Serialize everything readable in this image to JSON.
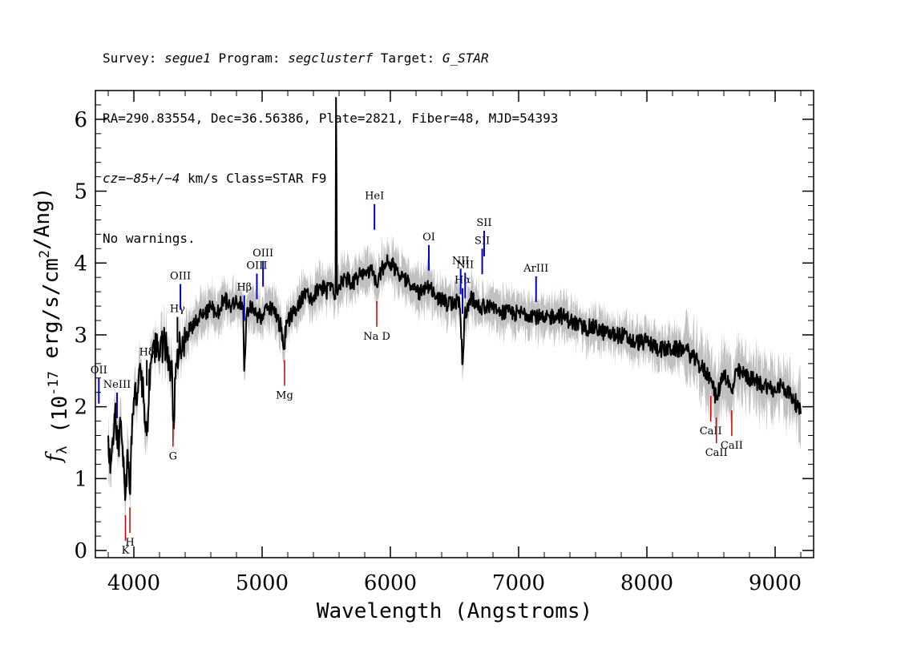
{
  "header": {
    "line1": {
      "survey_label": "Survey: ",
      "survey": "segue1",
      "program_label": " Program: ",
      "program": "segclusterf",
      "target_label": " Target: ",
      "target": "G_STAR"
    },
    "line2": "RA=290.83554, Dec=36.56386, Plate=2821, Fiber=48, MJD=54393",
    "line3": {
      "cz": "cz=−85+/−4",
      "rest": " km/s Class=STAR F9"
    },
    "line4": "No warnings."
  },
  "chart_data": {
    "type": "line",
    "xlabel": "Wavelength (Angstroms)",
    "ylabel": "f_λ (10^-17 erg/s/cm^2/Ang)",
    "xlim": [
      3700,
      9300
    ],
    "ylim": [
      -0.1,
      6.4
    ],
    "x_ticks": [
      4000,
      5000,
      6000,
      7000,
      8000,
      9000
    ],
    "y_ticks": [
      0,
      1,
      2,
      3,
      4,
      5,
      6
    ],
    "series": [
      {
        "color": "#000000",
        "x": [
          3800,
          3820,
          3850,
          3880,
          3900,
          3920,
          3933,
          3950,
          3968,
          3990,
          4030,
          4060,
          4101,
          4130,
          4160,
          4200,
          4240,
          4280,
          4300,
          4310,
          4330,
          4360,
          4400,
          4450,
          4500,
          4550,
          4600,
          4650,
          4700,
          4750,
          4800,
          4850,
          4861,
          4880,
          4920,
          4960,
          5000,
          5050,
          5100,
          5150,
          5170,
          5190,
          5250,
          5300,
          5350,
          5400,
          5450,
          5500,
          5550,
          5570,
          5577,
          5585,
          5600,
          5650,
          5700,
          5750,
          5800,
          5850,
          5890,
          5930,
          5960,
          6000,
          6050,
          6100,
          6150,
          6200,
          6250,
          6300,
          6350,
          6400,
          6450,
          6500,
          6540,
          6563,
          6580,
          6620,
          6700,
          6800,
          6900,
          7000,
          7100,
          7200,
          7300,
          7400,
          7500,
          7600,
          7700,
          7800,
          7900,
          8000,
          8100,
          8200,
          8300,
          8400,
          8498,
          8542,
          8600,
          8662,
          8700,
          8800,
          8900,
          8950,
          9000,
          9050,
          9100,
          9150,
          9200
        ],
        "y": [
          1.6,
          1.2,
          1.9,
          1.5,
          1.8,
          1.3,
          0.7,
          1.4,
          0.8,
          1.9,
          2.2,
          2.5,
          1.6,
          2.6,
          2.9,
          2.7,
          2.9,
          2.6,
          2.4,
          1.7,
          2.6,
          2.9,
          3.0,
          3.1,
          3.2,
          3.3,
          3.4,
          3.3,
          3.5,
          3.4,
          3.5,
          3.4,
          2.5,
          3.3,
          3.4,
          3.3,
          3.2,
          3.4,
          3.3,
          3.1,
          2.8,
          3.2,
          3.3,
          3.5,
          3.6,
          3.5,
          3.7,
          3.6,
          3.7,
          3.5,
          6.3,
          3.6,
          3.7,
          3.8,
          3.7,
          3.8,
          3.9,
          3.9,
          3.7,
          3.9,
          4.0,
          4.0,
          3.9,
          3.8,
          3.7,
          3.6,
          3.6,
          3.7,
          3.5,
          3.5,
          3.4,
          3.5,
          3.4,
          2.6,
          3.3,
          3.5,
          3.4,
          3.4,
          3.3,
          3.3,
          3.3,
          3.2,
          3.3,
          3.2,
          3.1,
          3.1,
          3.0,
          3.0,
          2.9,
          2.9,
          2.8,
          2.8,
          2.8,
          2.6,
          2.4,
          2.1,
          2.5,
          2.2,
          2.5,
          2.4,
          2.3,
          2.3,
          2.2,
          2.3,
          2.2,
          2.1,
          1.9
        ]
      }
    ],
    "uncertainty_band_color": "#c0c0c0",
    "emission_lines": [
      {
        "label": "NeIII",
        "wavelength": 3869,
        "color": "#0000cc"
      },
      {
        "label": "OII",
        "wavelength": 3727,
        "color": "#0000cc"
      },
      {
        "label": "Hδ",
        "wavelength": 4101,
        "color": "#000000"
      },
      {
        "label": "Hγ",
        "wavelength": 4340,
        "color": "#000000"
      },
      {
        "label": "OIII",
        "wavelength": 4363,
        "color": "#0000cc"
      },
      {
        "label": "Hβ",
        "wavelength": 4861,
        "color": "#0000cc"
      },
      {
        "label": "OIII",
        "wavelength": 4959,
        "color": "#0000cc"
      },
      {
        "label": "OIII",
        "wavelength": 5007,
        "color": "#0000cc"
      },
      {
        "label": "HeI",
        "wavelength": 5876,
        "color": "#0000cc"
      },
      {
        "label": "OI",
        "wavelength": 6300,
        "color": "#0000cc"
      },
      {
        "label": "NII",
        "wavelength": 6548,
        "color": "#0000cc"
      },
      {
        "label": "Hα",
        "wavelength": 6563,
        "color": "#0000cc"
      },
      {
        "label": "NII",
        "wavelength": 6583,
        "color": "#0000cc"
      },
      {
        "label": "SII",
        "wavelength": 6716,
        "color": "#0000cc"
      },
      {
        "label": "SII",
        "wavelength": 6731,
        "color": "#0000cc"
      },
      {
        "label": "ArIII",
        "wavelength": 7136,
        "color": "#0000cc"
      }
    ],
    "absorption_lines": [
      {
        "label": "K",
        "wavelength": 3934,
        "color": "#cc0000"
      },
      {
        "label": "H",
        "wavelength": 3969,
        "color": "#cc0000"
      },
      {
        "label": "G",
        "wavelength": 4305,
        "color": "#cc0000"
      },
      {
        "label": "Mg",
        "wavelength": 5175,
        "color": "#cc0000"
      },
      {
        "label": "Na D",
        "wavelength": 5894,
        "color": "#cc0000"
      },
      {
        "label": "CaII",
        "wavelength": 8498,
        "color": "#cc0000"
      },
      {
        "label": "CaII",
        "wavelength": 8542,
        "color": "#cc0000"
      },
      {
        "label": "CaII",
        "wavelength": 8662,
        "color": "#cc0000"
      }
    ],
    "grid": false
  }
}
